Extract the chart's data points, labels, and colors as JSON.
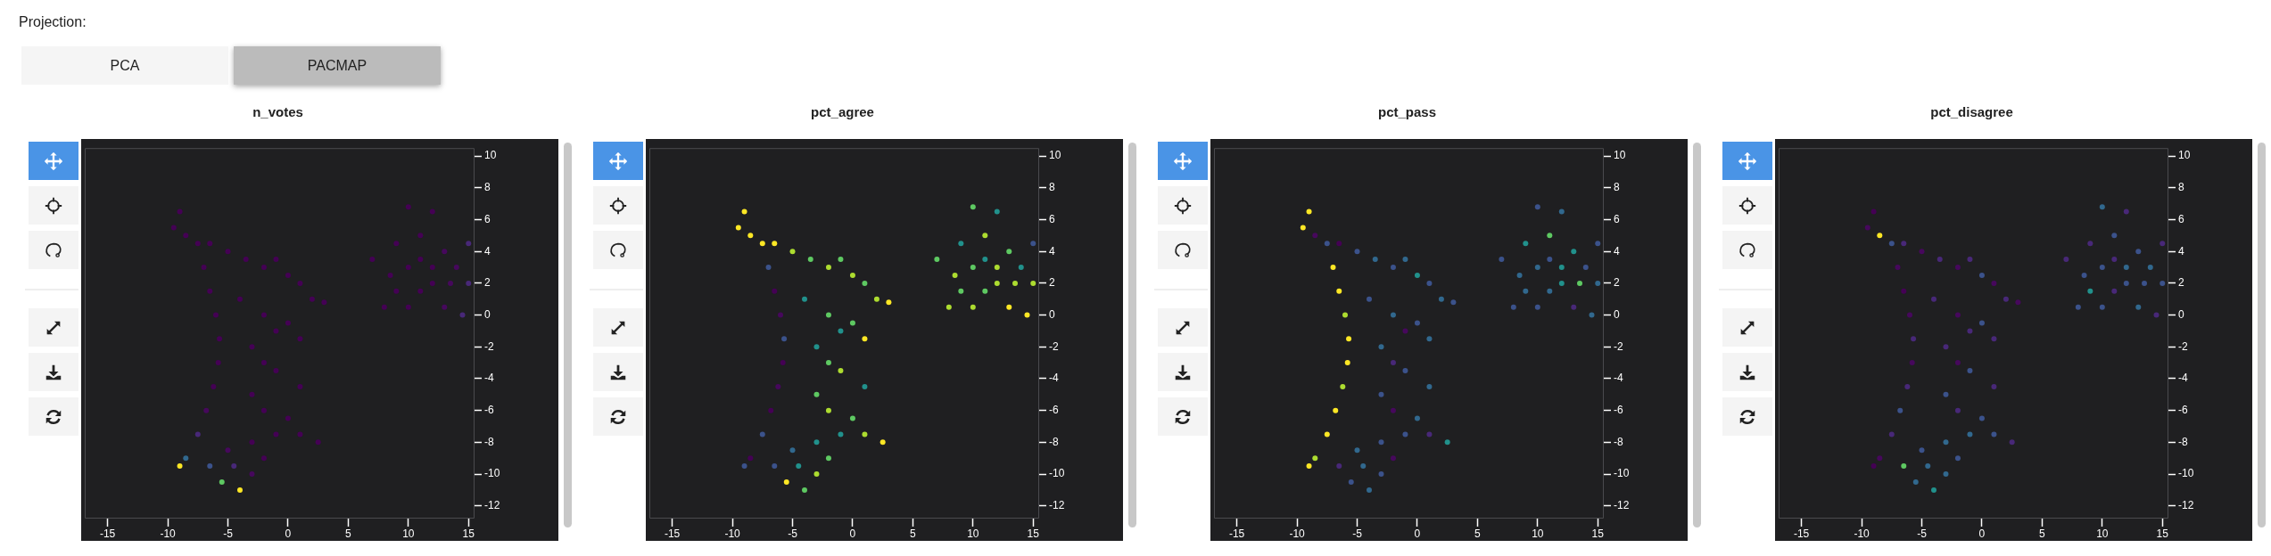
{
  "chart_data": [
    {
      "type": "scatter",
      "title": "n_votes",
      "annotations": [
        "Projection:",
        "PCA",
        "PACMAP"
      ],
      "marker": "circle",
      "xlim": [
        -16.9,
        15.5
      ],
      "ylim": [
        -12.8,
        10.5
      ],
      "xticks": [
        -15,
        -10,
        -5,
        0,
        5,
        10,
        15
      ],
      "yticks": [
        -12,
        -10,
        -8,
        -6,
        -4,
        -2,
        0,
        2,
        4,
        6,
        8,
        10
      ],
      "series": [
        {
          "x": [
            -9.5,
            -9,
            -8.5,
            -7.5,
            -6.5,
            -5,
            -3.5,
            -2,
            -1,
            0,
            1,
            2,
            3,
            1,
            -7,
            -6.5,
            -6,
            -5.7,
            -5.8,
            -6.2,
            -6.8,
            -7.5,
            -8.5,
            -9,
            -4,
            -2,
            -1,
            0,
            -3,
            -2,
            -1,
            1,
            -3,
            -2,
            0,
            -1,
            1,
            2.5,
            -3,
            -5,
            -6.5,
            -5.5,
            -4,
            -3,
            -2,
            -4.5,
            7,
            8.5,
            9,
            10,
            11,
            12,
            13,
            14,
            15,
            15,
            12,
            11,
            10,
            13,
            14.5,
            8,
            12,
            10,
            11,
            13.5,
            9
          ],
          "values": [
            5.5,
            6.5,
            5,
            4.5,
            4.5,
            4,
            3.5,
            3,
            3.5,
            2.5,
            2,
            1,
            0.8,
            -1.5,
            3,
            1.5,
            0,
            -1.5,
            -3,
            -4.5,
            -6,
            -7.5,
            -9,
            -9.5,
            1,
            0,
            -1,
            -0.5,
            -2,
            -3,
            -3.5,
            -4.5,
            -5,
            -6,
            -6.5,
            -7.5,
            -7.5,
            -8,
            -8,
            -8.5,
            -9.5,
            -10.5,
            -11,
            -10,
            -9,
            -9.5,
            3.5,
            2.5,
            4.5,
            6.8,
            5,
            6.5,
            4,
            3,
            2,
            4.5,
            2,
            1.5,
            0.5,
            0.5,
            0,
            0.5,
            3,
            3,
            3.5,
            2,
            1.5
          ],
          "colors": [
            "#440154",
            "#440154",
            "#440154",
            "#440154",
            "#440154",
            "#440154",
            "#440154",
            "#440154",
            "#440154",
            "#440154",
            "#440154",
            "#440154",
            "#440154",
            "#440154",
            "#440154",
            "#440154",
            "#440154",
            "#440154",
            "#440154",
            "#440154",
            "#46085c",
            "#482878",
            "#31688e",
            "#fde725",
            "#440154",
            "#440154",
            "#440154",
            "#440154",
            "#440154",
            "#440154",
            "#440154",
            "#440154",
            "#440154",
            "#440154",
            "#440154",
            "#440154",
            "#440154",
            "#440154",
            "#440154",
            "#46085c",
            "#3b528b",
            "#5ec962",
            "#fde725",
            "#46085c",
            "#440154",
            "#482878",
            "#440154",
            "#440154",
            "#440154",
            "#440154",
            "#440154",
            "#440154",
            "#46085c",
            "#46085c",
            "#482878",
            "#482878",
            "#440154",
            "#440154",
            "#440154",
            "#46085c",
            "#482878",
            "#440154",
            "#440154",
            "#440154",
            "#440154",
            "#46085c",
            "#440154"
          ]
        }
      ]
    },
    {
      "type": "scatter",
      "title": "pct_agree",
      "marker": "circle",
      "xlim": [
        -16.9,
        15.5
      ],
      "ylim": [
        -12.8,
        10.5
      ],
      "xticks": [
        -15,
        -10,
        -5,
        0,
        5,
        10,
        15
      ],
      "yticks": [
        -12,
        -10,
        -8,
        -6,
        -4,
        -2,
        0,
        2,
        4,
        6,
        8,
        10
      ],
      "series": [
        {
          "x": [
            -9.5,
            -9,
            -8.5,
            -7.5,
            -6.5,
            -5,
            -3.5,
            -2,
            -1,
            0,
            1,
            2,
            3,
            1,
            -7,
            -6.5,
            -6,
            -5.7,
            -5.8,
            -6.2,
            -6.8,
            -7.5,
            -8.5,
            -9,
            -4,
            -2,
            -1,
            0,
            -3,
            -2,
            -1,
            1,
            -3,
            -2,
            0,
            -1,
            1,
            2.5,
            -3,
            -5,
            -6.5,
            -5.5,
            -4,
            -3,
            -2,
            -4.5,
            7,
            8.5,
            9,
            10,
            11,
            12,
            13,
            14,
            15,
            15,
            12,
            11,
            10,
            13,
            14.5,
            8,
            12,
            10,
            11,
            13.5,
            9
          ],
          "values": [
            5.5,
            6.5,
            5,
            4.5,
            4.5,
            4,
            3.5,
            3,
            3.5,
            2.5,
            2,
            1,
            0.8,
            -1.5,
            3,
            1.5,
            0,
            -1.5,
            -3,
            -4.5,
            -6,
            -7.5,
            -9,
            -9.5,
            1,
            0,
            -1,
            -0.5,
            -2,
            -3,
            -3.5,
            -4.5,
            -5,
            -6,
            -6.5,
            -7.5,
            -7.5,
            -8,
            -8,
            -8.5,
            -9.5,
            -10.5,
            -11,
            -10,
            -9,
            -9.5,
            3.5,
            2.5,
            4.5,
            6.8,
            5,
            6.5,
            4,
            3,
            2,
            4.5,
            2,
            1.5,
            0.5,
            0.5,
            0,
            0.5,
            3,
            3,
            3.5,
            2,
            1.5
          ],
          "colors": [
            "#fde725",
            "#fde725",
            "#fde725",
            "#fde725",
            "#fde725",
            "#addc30",
            "#5ec962",
            "#addc30",
            "#5ec962",
            "#addc30",
            "#5ec962",
            "#addc30",
            "#fde725",
            "#fde725",
            "#3b528b",
            "#440154",
            "#46085c",
            "#3b528b",
            "#440154",
            "#46085c",
            "#440154",
            "#3b528b",
            "#440154",
            "#3b528b",
            "#21918c",
            "#5ec962",
            "#21918c",
            "#5ec962",
            "#21918c",
            "#5ec962",
            "#addc30",
            "#21918c",
            "#5ec962",
            "#addc30",
            "#5ec962",
            "#21918c",
            "#addc30",
            "#fde725",
            "#21918c",
            "#31688e",
            "#3b528b",
            "#fde725",
            "#5ec962",
            "#addc30",
            "#5ec962",
            "#21918c",
            "#5ec962",
            "#addc30",
            "#21918c",
            "#5ec962",
            "#addc30",
            "#21918c",
            "#5ec962",
            "#21918c",
            "#addc30",
            "#3b528b",
            "#addc30",
            "#5ec962",
            "#addc30",
            "#fde725",
            "#fde725",
            "#addc30",
            "#addc30",
            "#5ec962",
            "#21918c",
            "#addc30",
            "#5ec962"
          ]
        }
      ]
    },
    {
      "type": "scatter",
      "title": "pct_pass",
      "marker": "circle",
      "xlim": [
        -16.9,
        15.5
      ],
      "ylim": [
        -12.8,
        10.5
      ],
      "xticks": [
        -15,
        -10,
        -5,
        0,
        5,
        10,
        15
      ],
      "yticks": [
        -12,
        -10,
        -8,
        -6,
        -4,
        -2,
        0,
        2,
        4,
        6,
        8,
        10
      ],
      "series": [
        {
          "x": [
            -9.5,
            -9,
            -8.5,
            -7.5,
            -6.5,
            -5,
            -3.5,
            -2,
            -1,
            0,
            1,
            2,
            3,
            1,
            -7,
            -6.5,
            -6,
            -5.7,
            -5.8,
            -6.2,
            -6.8,
            -7.5,
            -8.5,
            -9,
            -4,
            -2,
            -1,
            0,
            -3,
            -2,
            -1,
            1,
            -3,
            -2,
            0,
            -1,
            1,
            2.5,
            -3,
            -5,
            -6.5,
            -5.5,
            -4,
            -3,
            -2,
            -4.5,
            7,
            8.5,
            9,
            10,
            11,
            12,
            13,
            14,
            15,
            15,
            12,
            11,
            10,
            13,
            14.5,
            8,
            12,
            10,
            11,
            13.5,
            9
          ],
          "values": [
            5.5,
            6.5,
            5,
            4.5,
            4.5,
            4,
            3.5,
            3,
            3.5,
            2.5,
            2,
            1,
            0.8,
            -1.5,
            3,
            1.5,
            0,
            -1.5,
            -3,
            -4.5,
            -6,
            -7.5,
            -9,
            -9.5,
            1,
            0,
            -1,
            -0.5,
            -2,
            -3,
            -3.5,
            -4.5,
            -5,
            -6,
            -6.5,
            -7.5,
            -7.5,
            -8,
            -8,
            -8.5,
            -9.5,
            -10.5,
            -11,
            -10,
            -9,
            -9.5,
            3.5,
            2.5,
            4.5,
            6.8,
            5,
            6.5,
            4,
            3,
            2,
            4.5,
            2,
            1.5,
            0.5,
            0.5,
            0,
            0.5,
            3,
            3,
            3.5,
            2,
            1.5
          ],
          "colors": [
            "#fde725",
            "#fde725",
            "#46085c",
            "#3b528b",
            "#440154",
            "#3b528b",
            "#31688e",
            "#3b528b",
            "#31688e",
            "#21918c",
            "#3b528b",
            "#31688e",
            "#3b528b",
            "#31688e",
            "#fde725",
            "#fde725",
            "#addc30",
            "#fde725",
            "#fde725",
            "#addc30",
            "#fde725",
            "#fde725",
            "#addc30",
            "#fde725",
            "#3b528b",
            "#31688e",
            "#46085c",
            "#3b528b",
            "#31688e",
            "#482878",
            "#3b528b",
            "#31688e",
            "#3b528b",
            "#46085c",
            "#31688e",
            "#3b528b",
            "#482878",
            "#21918c",
            "#3b528b",
            "#31688e",
            "#482878",
            "#3b528b",
            "#31688e",
            "#3b528b",
            "#46085c",
            "#31688e",
            "#3b528b",
            "#31688e",
            "#21918c",
            "#3b528b",
            "#5ec962",
            "#31688e",
            "#21918c",
            "#3b528b",
            "#31688e",
            "#3b528b",
            "#21918c",
            "#31688e",
            "#3b528b",
            "#482878",
            "#31688e",
            "#3b528b",
            "#21918c",
            "#31688e",
            "#3b528b",
            "#5ec962",
            "#31688e"
          ]
        }
      ]
    },
    {
      "type": "scatter",
      "title": "pct_disagree",
      "marker": "circle",
      "xlim": [
        -16.9,
        15.5
      ],
      "ylim": [
        -12.8,
        10.5
      ],
      "xticks": [
        -15,
        -10,
        -5,
        0,
        5,
        10,
        15
      ],
      "yticks": [
        -12,
        -10,
        -8,
        -6,
        -4,
        -2,
        0,
        2,
        4,
        6,
        8,
        10
      ],
      "series": [
        {
          "x": [
            -9.5,
            -9,
            -8.5,
            -7.5,
            -6.5,
            -5,
            -3.5,
            -2,
            -1,
            0,
            1,
            2,
            3,
            1,
            -7,
            -6.5,
            -6,
            -5.7,
            -5.8,
            -6.2,
            -6.8,
            -7.5,
            -8.5,
            -9,
            -4,
            -2,
            -1,
            0,
            -3,
            -2,
            -1,
            1,
            -3,
            -2,
            0,
            -1,
            1,
            2.5,
            -3,
            -5,
            -6.5,
            -5.5,
            -4,
            -3,
            -2,
            -4.5,
            7,
            8.5,
            9,
            10,
            11,
            12,
            13,
            14,
            15,
            15,
            12,
            11,
            10,
            13,
            14.5,
            8,
            12,
            10,
            11,
            13.5,
            9
          ],
          "values": [
            5.5,
            6.5,
            5,
            4.5,
            4.5,
            4,
            3.5,
            3,
            3.5,
            2.5,
            2,
            1,
            0.8,
            -1.5,
            3,
            1.5,
            0,
            -1.5,
            -3,
            -4.5,
            -6,
            -7.5,
            -9,
            -9.5,
            1,
            0,
            -1,
            -0.5,
            -2,
            -3,
            -3.5,
            -4.5,
            -5,
            -6,
            -6.5,
            -7.5,
            -7.5,
            -8,
            -8,
            -8.5,
            -9.5,
            -10.5,
            -11,
            -10,
            -9,
            -9.5,
            3.5,
            2.5,
            4.5,
            6.8,
            5,
            6.5,
            4,
            3,
            2,
            4.5,
            2,
            1.5,
            0.5,
            0.5,
            0,
            0.5,
            3,
            3,
            3.5,
            2,
            1.5
          ],
          "colors": [
            "#46085c",
            "#440154",
            "#fde725",
            "#3b528b",
            "#482878",
            "#46085c",
            "#482878",
            "#46085c",
            "#482878",
            "#3b528b",
            "#46085c",
            "#482878",
            "#46085c",
            "#482878",
            "#46085c",
            "#440154",
            "#46085c",
            "#482878",
            "#46085c",
            "#482878",
            "#3b528b",
            "#482878",
            "#46085c",
            "#440154",
            "#482878",
            "#46085c",
            "#482878",
            "#3b528b",
            "#482878",
            "#46085c",
            "#3b528b",
            "#482878",
            "#3b528b",
            "#482878",
            "#3b528b",
            "#31688e",
            "#3b528b",
            "#482878",
            "#31688e",
            "#3b528b",
            "#5ec962",
            "#31688e",
            "#21918c",
            "#31688e",
            "#3b528b",
            "#31688e",
            "#482878",
            "#3b528b",
            "#482878",
            "#31688e",
            "#3b528b",
            "#482878",
            "#3b528b",
            "#31688e",
            "#3b528b",
            "#482878",
            "#3b528b",
            "#482878",
            "#3b528b",
            "#31688e",
            "#482878",
            "#3b528b",
            "#31688e",
            "#3b528b",
            "#482878",
            "#3b528b",
            "#21918c"
          ]
        }
      ]
    }
  ]
}
